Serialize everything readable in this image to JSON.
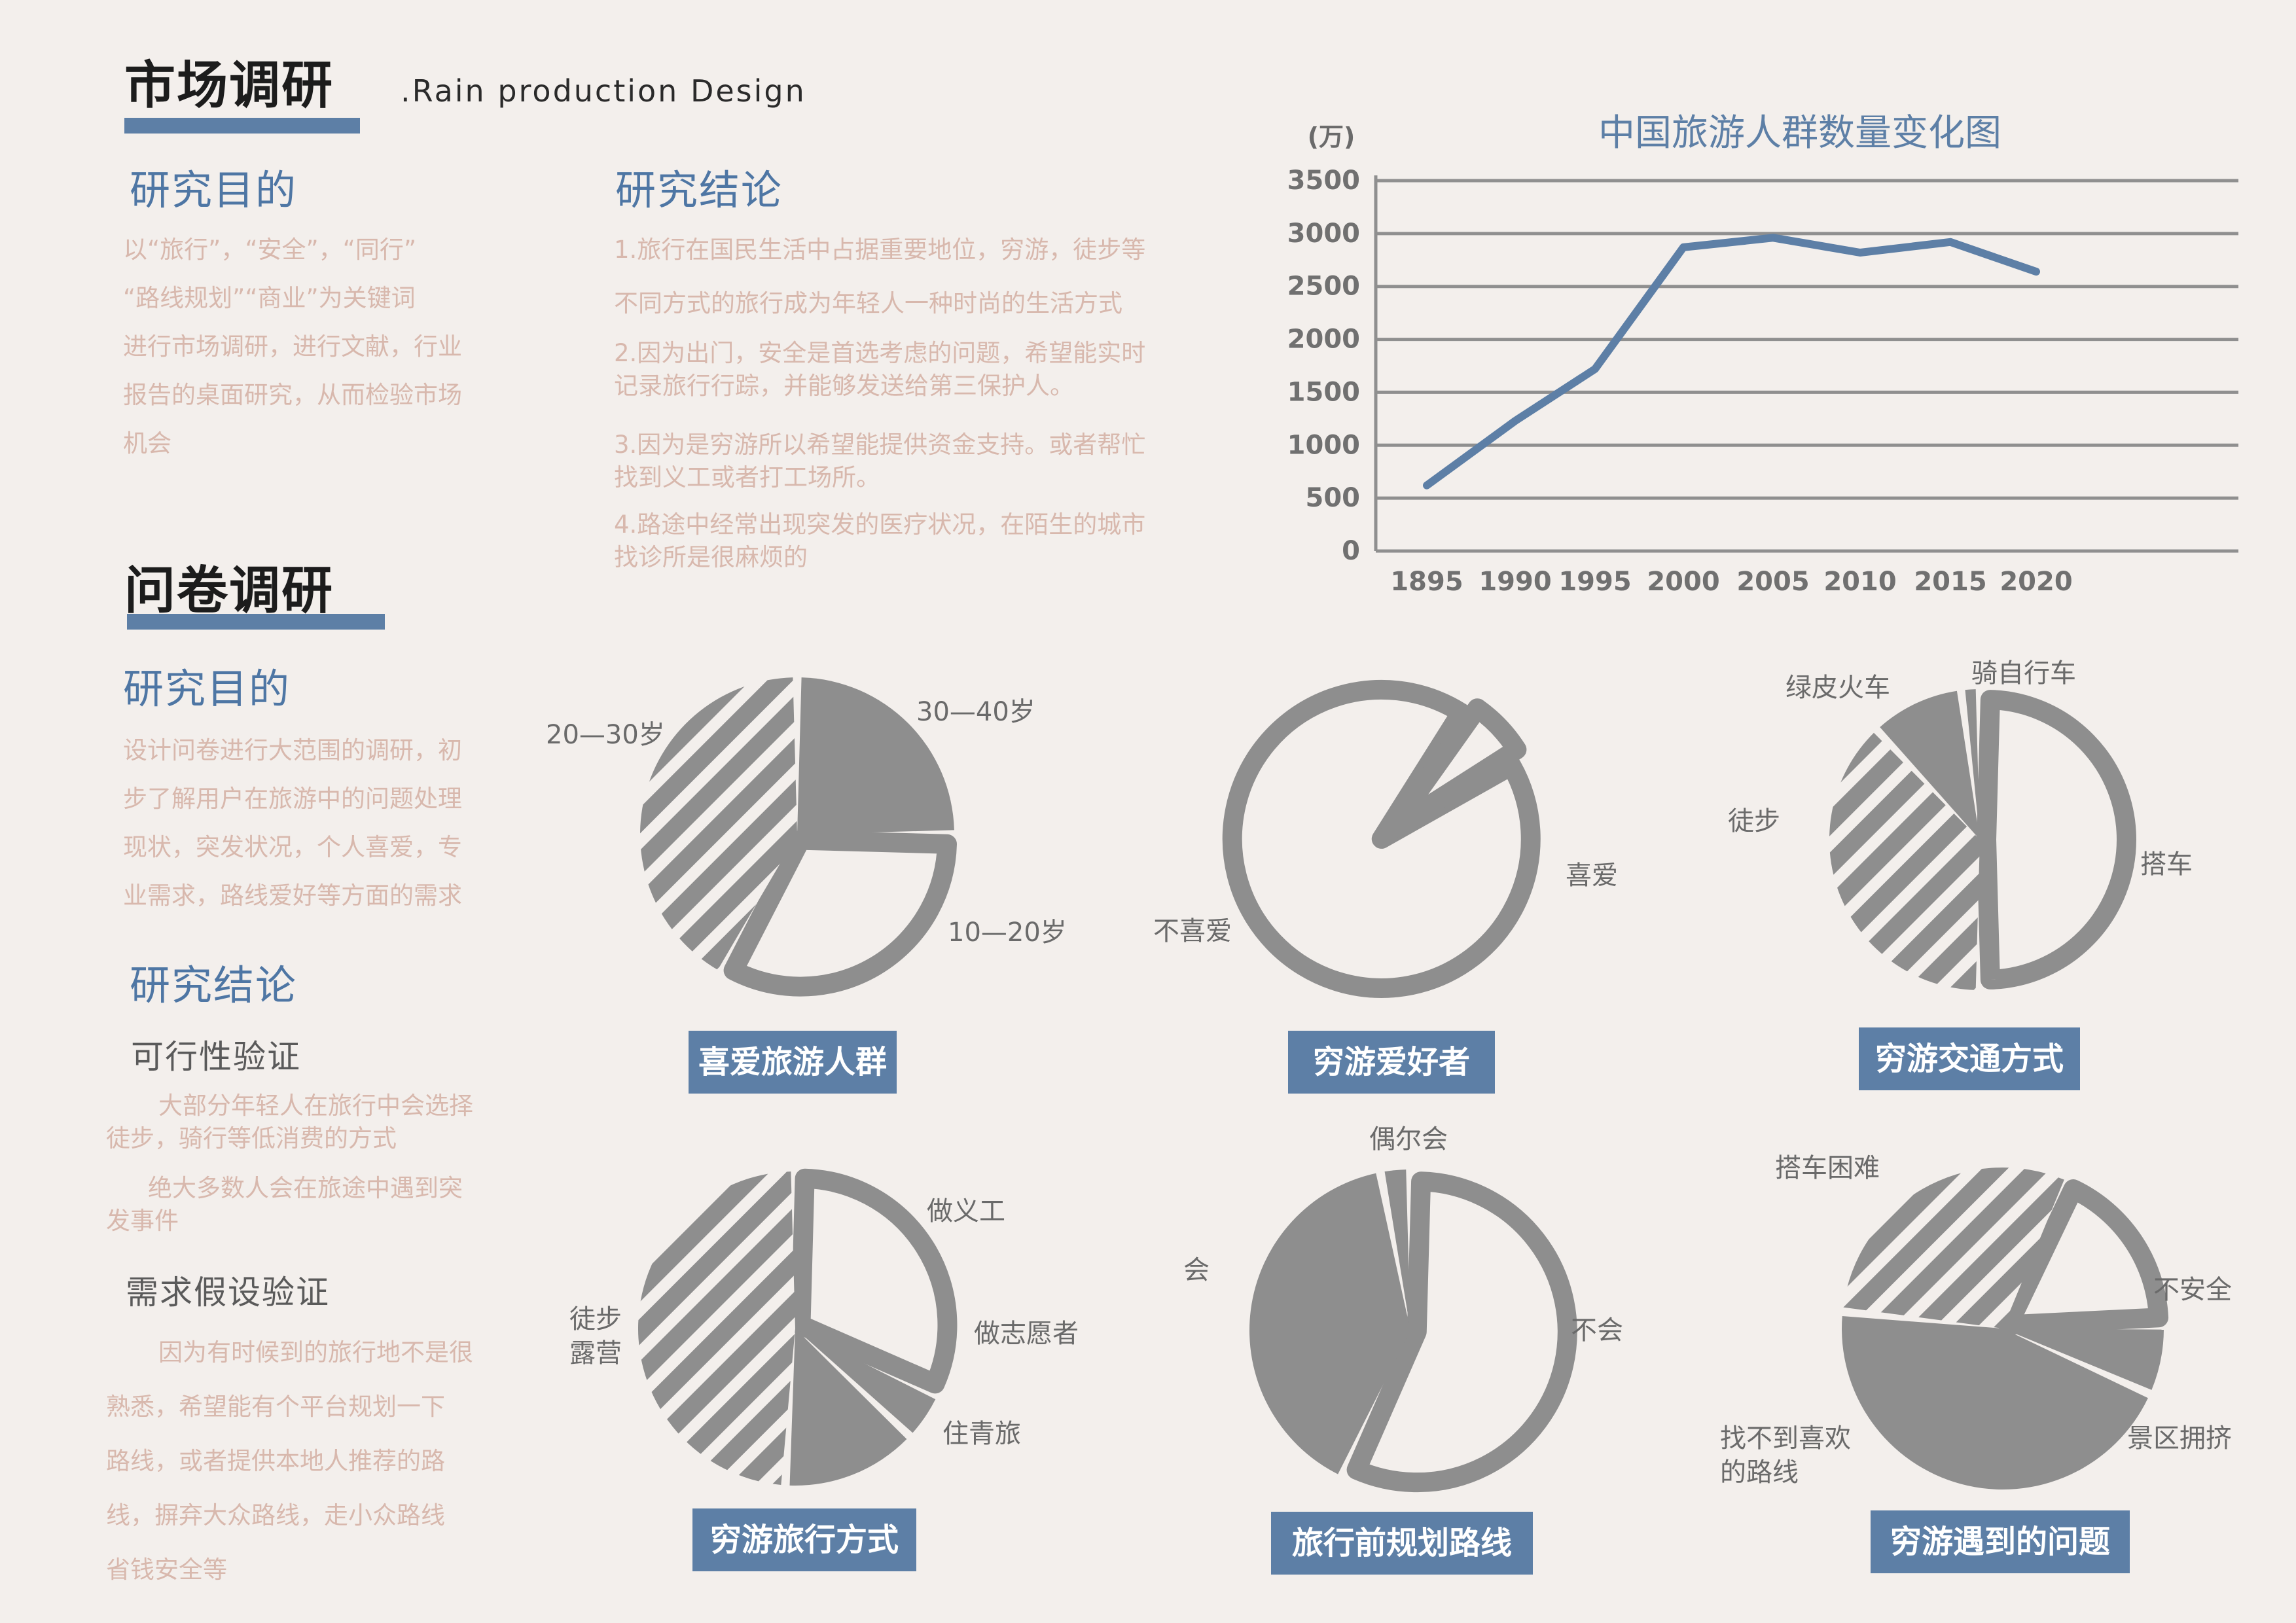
{
  "header": {
    "title": "市场调研",
    "subtitle": ".Rain production Design"
  },
  "market": {
    "purpose_heading": "研究目的",
    "purpose_lines": [
      "以“旅行”，“安全”，“同行”",
      "“路线规划”“商业”为关键词",
      "进行市场调研，进行文献，行业",
      "报告的桌面研究，从而检验市场",
      "机会"
    ],
    "conclusion_heading": "研究结论",
    "conclusion_lines": [
      "1.旅行在国民生活中占据重要地位，穷游，徒步等",
      "不同方式的旅行成为年轻人一种时尚的生活方式",
      "2.因为出门，安全是首选考虑的问题，希望能实时",
      "记录旅行行踪，并能够发送给第三保护人。",
      "3.因为是穷游所以希望能提供资金支持。或者帮忙",
      "找到义工或者打工场所。",
      "4.路途中经常出现突发的医疗状况，在陌生的城市",
      "找诊所是很麻烦的"
    ]
  },
  "survey": {
    "title": "问卷调研",
    "purpose_heading": "研究目的",
    "purpose_lines": [
      "设计问卷进行大范围的调研，初",
      "步了解用户在旅游中的问题处理",
      "现状，突发状况，个人喜爱，专",
      "业需求，路线爱好等方面的需求"
    ],
    "conclusion_heading": "研究结论",
    "feasibility_heading": "可行性验证",
    "feasibility_lines": [
      "大部分年轻人在旅行中会选择",
      "徒步，骑行等低消费的方式",
      "绝大多数人会在旅途中遇到突",
      "发事件"
    ],
    "hypothesis_heading": "需求假设验证",
    "hypothesis_lines": [
      "因为有时候到的旅行地不是很",
      "熟悉，希望能有个平台规划一下",
      "路线，或者提供本地人推荐的路",
      "线，摒弃大众路线，走小众路线",
      "省钱安全等"
    ]
  },
  "chart_data": [
    {
      "type": "line",
      "title": "中国旅游人群数量变化图",
      "ylabel": "(万)",
      "x": [
        "1895",
        "1990",
        "1995",
        "2000",
        "2005",
        "2010",
        "2015",
        "2020"
      ],
      "y": [
        620,
        1230,
        1720,
        2870,
        2960,
        2820,
        2920,
        2640
      ],
      "ylim": [
        0,
        3500
      ],
      "yticks": [
        0,
        500,
        1000,
        1500,
        2000,
        2500,
        3000,
        3500
      ],
      "grid": true,
      "line_color": "#5d7fa6"
    },
    {
      "type": "pie",
      "title": "喜爱旅游人群",
      "slices": [
        {
          "label": "30—40岁",
          "value": 25,
          "fill": "solid"
        },
        {
          "label": "10—20岁",
          "value": 33,
          "fill": "outline"
        },
        {
          "label": "20—30岁",
          "value": 42,
          "fill": "hatch"
        }
      ]
    },
    {
      "type": "pie",
      "title": "穷游爱好者",
      "slices": [
        {
          "label": "喜爱",
          "value": 93,
          "fill": "outline"
        },
        {
          "label": "不喜爱",
          "value": 7,
          "fill": "outline"
        }
      ]
    },
    {
      "type": "pie",
      "title": "穷游交通方式",
      "slices": [
        {
          "label": "搭车",
          "value": 50,
          "fill": "outline"
        },
        {
          "label": "徒步",
          "value": 38,
          "fill": "hatch"
        },
        {
          "label": "绿皮火车",
          "value": 10,
          "fill": "solid"
        },
        {
          "label": "骑自行车",
          "value": 2,
          "fill": "solid"
        }
      ]
    },
    {
      "type": "pie",
      "title": "穷游旅行方式",
      "slices": [
        {
          "label": "做义工",
          "value": 32,
          "fill": "outline"
        },
        {
          "label": "做志愿者",
          "value": 5,
          "fill": "solid"
        },
        {
          "label": "住青旅",
          "value": 14,
          "fill": "solid"
        },
        {
          "label": "徒步露营",
          "value": 49,
          "fill": "hatch"
        }
      ]
    },
    {
      "type": "pie",
      "title": "旅行前规划路线",
      "slices": [
        {
          "label": "不会",
          "value": 57,
          "fill": "outline"
        },
        {
          "label": "会",
          "value": 40,
          "fill": "solid"
        },
        {
          "label": "偶尔会",
          "value": 3,
          "fill": "solid"
        }
      ]
    },
    {
      "type": "pie",
      "title": "穷游遇到的问题",
      "slices": [
        {
          "label": "不安全",
          "value": 18,
          "fill": "outline"
        },
        {
          "label": "景区拥挤",
          "value": 7,
          "fill": "solid"
        },
        {
          "label": "找不到喜欢的路线",
          "value": 45,
          "fill": "solid"
        },
        {
          "label": "搭车困难",
          "value": 30,
          "fill": "hatch"
        }
      ]
    }
  ]
}
